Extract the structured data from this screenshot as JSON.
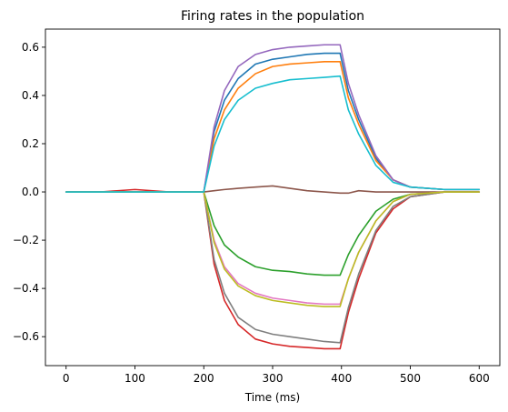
{
  "chart_data": {
    "type": "line",
    "title": "Firing rates in the population",
    "xlabel": "Time (ms)",
    "ylabel": "",
    "xlim": [
      -30,
      630
    ],
    "ylim": [
      -0.72,
      0.675
    ],
    "xticks": [
      0,
      100,
      200,
      300,
      400,
      500,
      600
    ],
    "yticks": [
      -0.6,
      -0.4,
      -0.2,
      0.0,
      0.2,
      0.4,
      0.6
    ],
    "xtick_labels": [
      "0",
      "100",
      "200",
      "300",
      "400",
      "500",
      "600"
    ],
    "ytick_labels": [
      "−0.6",
      "−0.4",
      "−0.2",
      "0.0",
      "0.2",
      "0.4",
      "0.6"
    ],
    "grid": false,
    "legend": "none",
    "x": [
      0,
      50,
      100,
      150,
      200,
      215,
      230,
      250,
      275,
      300,
      325,
      350,
      375,
      398,
      410,
      425,
      450,
      475,
      500,
      550,
      600
    ],
    "series": [
      {
        "color": "#1f77b4",
        "values": [
          0.0,
          0.0,
          0.0,
          0.0,
          0.0,
          0.25,
          0.38,
          0.47,
          0.53,
          0.55,
          0.56,
          0.57,
          0.575,
          0.575,
          0.42,
          0.3,
          0.14,
          0.05,
          0.02,
          0.01,
          0.01
        ]
      },
      {
        "color": "#ff7f0e",
        "values": [
          0.0,
          0.0,
          0.0,
          0.0,
          0.0,
          0.22,
          0.34,
          0.43,
          0.49,
          0.52,
          0.53,
          0.535,
          0.54,
          0.54,
          0.39,
          0.28,
          0.13,
          0.05,
          0.02,
          0.01,
          0.01
        ]
      },
      {
        "color": "#2ca02c",
        "values": [
          0.0,
          0.0,
          0.0,
          0.0,
          0.0,
          -0.14,
          -0.22,
          -0.27,
          -0.31,
          -0.325,
          -0.33,
          -0.34,
          -0.345,
          -0.345,
          -0.26,
          -0.18,
          -0.08,
          -0.03,
          -0.01,
          0.0,
          0.0
        ]
      },
      {
        "color": "#d62728",
        "values": [
          0.0,
          0.0,
          0.01,
          0.0,
          0.0,
          -0.3,
          -0.45,
          -0.55,
          -0.61,
          -0.63,
          -0.64,
          -0.645,
          -0.65,
          -0.65,
          -0.5,
          -0.36,
          -0.17,
          -0.07,
          -0.02,
          0.0,
          0.0
        ]
      },
      {
        "color": "#9467bd",
        "values": [
          0.0,
          0.0,
          0.0,
          0.0,
          0.0,
          0.27,
          0.42,
          0.52,
          0.57,
          0.59,
          0.6,
          0.605,
          0.61,
          0.61,
          0.45,
          0.32,
          0.15,
          0.05,
          0.02,
          0.01,
          0.01
        ]
      },
      {
        "color": "#8c564b",
        "values": [
          0.0,
          0.0,
          0.0,
          0.0,
          0.0,
          0.005,
          0.01,
          0.015,
          0.02,
          0.025,
          0.015,
          0.005,
          0.0,
          -0.005,
          -0.005,
          0.005,
          0.0,
          0.0,
          0.0,
          0.0,
          0.0
        ]
      },
      {
        "color": "#e377c2",
        "values": [
          0.0,
          0.0,
          0.0,
          0.0,
          0.0,
          -0.2,
          -0.31,
          -0.38,
          -0.42,
          -0.44,
          -0.45,
          -0.46,
          -0.465,
          -0.465,
          -0.36,
          -0.25,
          -0.12,
          -0.04,
          -0.01,
          0.0,
          0.0
        ]
      },
      {
        "color": "#7f7f7f",
        "values": [
          0.0,
          0.0,
          0.0,
          0.0,
          0.0,
          -0.28,
          -0.42,
          -0.52,
          -0.57,
          -0.59,
          -0.6,
          -0.61,
          -0.62,
          -0.625,
          -0.48,
          -0.34,
          -0.16,
          -0.06,
          -0.02,
          0.0,
          0.0
        ]
      },
      {
        "color": "#bcbd22",
        "values": [
          0.0,
          0.0,
          0.0,
          0.0,
          0.0,
          -0.21,
          -0.32,
          -0.39,
          -0.43,
          -0.45,
          -0.46,
          -0.47,
          -0.475,
          -0.475,
          -0.36,
          -0.25,
          -0.12,
          -0.04,
          -0.01,
          0.0,
          0.0
        ]
      },
      {
        "color": "#17becf",
        "values": [
          0.0,
          0.0,
          0.0,
          0.0,
          0.0,
          0.19,
          0.3,
          0.38,
          0.43,
          0.45,
          0.465,
          0.47,
          0.475,
          0.48,
          0.34,
          0.24,
          0.11,
          0.04,
          0.02,
          0.01,
          0.01
        ]
      }
    ]
  }
}
